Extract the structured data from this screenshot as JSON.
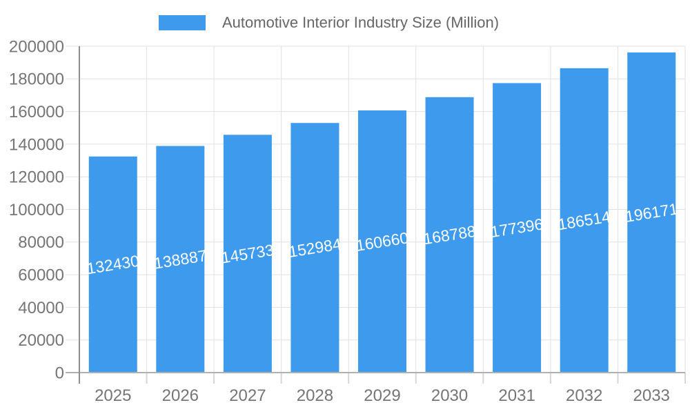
{
  "legend": {
    "label": "Automotive Interior Industry Size (Million)"
  },
  "chart_data": {
    "type": "bar",
    "title": "Automotive Interior Industry Size (Million)",
    "categories": [
      "2025",
      "2026",
      "2027",
      "2028",
      "2029",
      "2030",
      "2031",
      "2032",
      "2033"
    ],
    "series": [
      {
        "name": "Automotive Interior Industry Size (Million)",
        "values": [
          132430,
          138887,
          145733,
          152984,
          160660,
          168788,
          177396,
          186514,
          196171
        ]
      }
    ],
    "xlabel": "",
    "ylabel": "",
    "ylim": [
      0,
      200000
    ],
    "ytick_step": 20000,
    "ytick_labels": [
      "0",
      "20000",
      "40000",
      "60000",
      "80000",
      "100000",
      "120000",
      "140000",
      "160000",
      "180000",
      "200000"
    ],
    "grid": true,
    "legend_position": "top",
    "value_labels_shown": true,
    "value_label_rotation_deg": -9
  },
  "style": {
    "background": "#FFFFFF",
    "bar_color": "#3D9AEC",
    "grid_color": "#E0E0E0",
    "tick_color": "#D6D6D6",
    "x_axis_color": "#B0B0B0",
    "y_axis_color": "#8F8F8F",
    "axis_label_color": "#757575",
    "legend_text_color": "#666666",
    "value_label_color": "#FFFFFF"
  }
}
